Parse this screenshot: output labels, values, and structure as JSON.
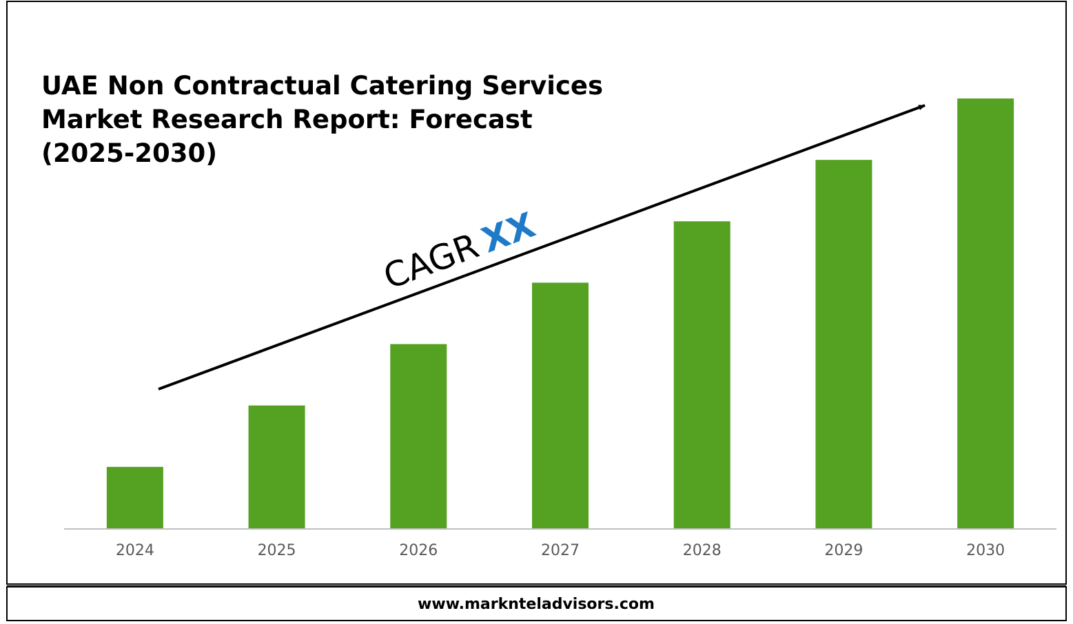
{
  "chart_data": {
    "type": "bar",
    "title": [
      "UAE Non Contractual Catering Services",
      "Market Research Report: Forecast",
      "(2025-2030)"
    ],
    "annotation": {
      "label": "CAGR",
      "value": "XX"
    },
    "categories": [
      "2024",
      "2025",
      "2026",
      "2027",
      "2028",
      "2029",
      "2030"
    ],
    "values": [
      1,
      2,
      3,
      4,
      5,
      6,
      7
    ],
    "color": "#55a122",
    "ylim": [
      0,
      7
    ],
    "footer": "www.marknteladvisors.com"
  }
}
